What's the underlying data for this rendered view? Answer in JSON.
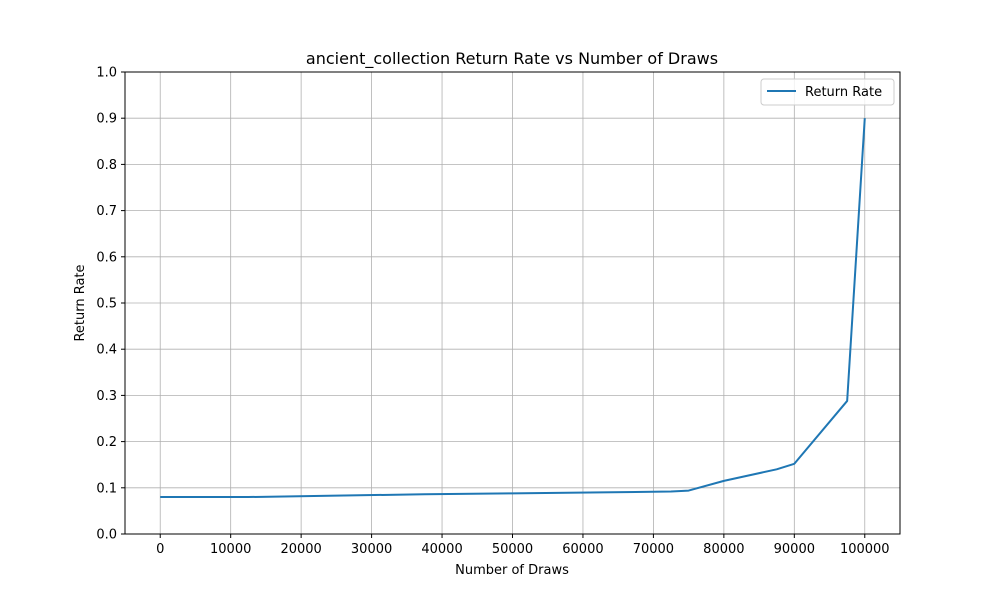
{
  "chart_data": {
    "type": "line",
    "title": "ancient_collection Return Rate vs Number of Draws",
    "xlabel": "Number of Draws",
    "ylabel": "Return Rate",
    "xlim": [
      -5000,
      105000
    ],
    "ylim": [
      0.0,
      1.0
    ],
    "x_ticks": [
      0,
      10000,
      20000,
      30000,
      40000,
      50000,
      60000,
      70000,
      80000,
      90000,
      100000
    ],
    "x_tick_labels": [
      "0",
      "10000",
      "20000",
      "30000",
      "40000",
      "50000",
      "60000",
      "70000",
      "80000",
      "90000",
      "100000"
    ],
    "y_ticks": [
      0.0,
      0.1,
      0.2,
      0.3,
      0.4,
      0.5,
      0.6,
      0.7,
      0.8,
      0.9,
      1.0
    ],
    "y_tick_labels": [
      "0.0",
      "0.1",
      "0.2",
      "0.3",
      "0.4",
      "0.5",
      "0.6",
      "0.7",
      "0.8",
      "0.9",
      "1.0"
    ],
    "grid": true,
    "legend_position": "top-right",
    "series": [
      {
        "name": "Return Rate",
        "color": "#1f77b4",
        "x": [
          0,
          12500,
          25000,
          37500,
          50000,
          62500,
          72500,
          75000,
          80000,
          87500,
          90000,
          97500,
          100000
        ],
        "y": [
          0.08,
          0.08,
          0.083,
          0.086,
          0.088,
          0.09,
          0.092,
          0.094,
          0.115,
          0.14,
          0.152,
          0.288,
          0.9
        ]
      }
    ]
  }
}
